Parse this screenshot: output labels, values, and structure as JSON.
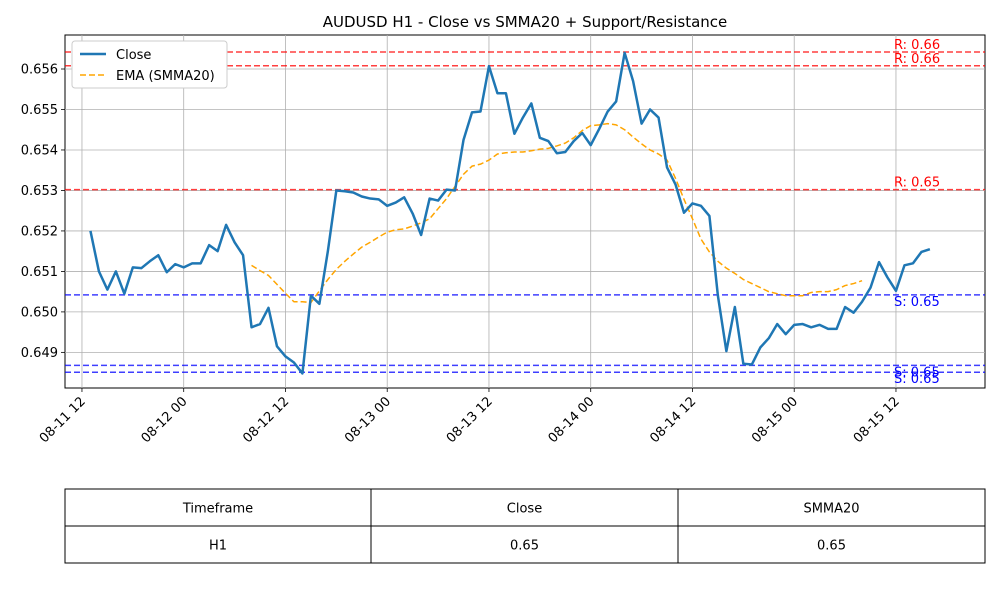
{
  "chart_data": {
    "type": "line",
    "title": "AUDUSD H1 - Close vs SMMA20 + Support/Resistance",
    "xlabel": "",
    "ylabel": "",
    "x_ticks": [
      "08-11 12",
      "08-12 00",
      "08-12 12",
      "08-13 00",
      "08-13 12",
      "08-14 00",
      "08-14 12",
      "08-15 00",
      "08-15 12"
    ],
    "y_ticks": [
      "0.649",
      "0.650",
      "0.651",
      "0.652",
      "0.653",
      "0.654",
      "0.655",
      "0.656"
    ],
    "xlim_hours_from_first_tick": [
      -2.0,
      106.5
    ],
    "ylim": [
      0.64812,
      0.65684
    ],
    "grid": true,
    "legend": {
      "placement": "top-left",
      "entries": [
        "Close",
        "EMA (SMMA20)"
      ]
    },
    "colors": {
      "close": "#1f77b4",
      "ema": "#ffa500",
      "resistance": "#ff0000",
      "support": "#0000ff"
    },
    "series": [
      {
        "name": "Close",
        "start_offset": 1,
        "values": [
          0.652,
          0.651,
          0.65055,
          0.651,
          0.65045,
          0.6511,
          0.65108,
          0.65125,
          0.6514,
          0.65098,
          0.65118,
          0.6511,
          0.6512,
          0.6512,
          0.65165,
          0.6515,
          0.65215,
          0.65172,
          0.6514,
          0.64962,
          0.6497,
          0.6501,
          0.64915,
          0.6489,
          0.64875,
          0.64848,
          0.6504,
          0.6502,
          0.6515,
          0.653,
          0.65298,
          0.65295,
          0.65285,
          0.6528,
          0.65278,
          0.65262,
          0.6527,
          0.65283,
          0.65243,
          0.6519,
          0.6528,
          0.65275,
          0.65302,
          0.653,
          0.65425,
          0.65493,
          0.65495,
          0.65607,
          0.6554,
          0.6554,
          0.6544,
          0.6548,
          0.65515,
          0.6543,
          0.65422,
          0.65392,
          0.65395,
          0.65422,
          0.65442,
          0.65412,
          0.65452,
          0.65495,
          0.6552,
          0.6564,
          0.6557,
          0.65465,
          0.655,
          0.6548,
          0.65357,
          0.65315,
          0.65245,
          0.65268,
          0.65262,
          0.65237,
          0.6504,
          0.64903,
          0.65012,
          0.64872,
          0.6487,
          0.64912,
          0.64935,
          0.6497,
          0.64945,
          0.64968,
          0.6497,
          0.64962,
          0.64968,
          0.64958,
          0.64958,
          0.65012,
          0.64998,
          0.65025,
          0.6506,
          0.65123,
          0.65085,
          0.65052,
          0.65115,
          0.6512,
          0.65148,
          0.65155
        ]
      },
      {
        "name": "EMA (SMMA20)",
        "start_offset": 20,
        "values": [
          0.65115,
          0.65102,
          0.6509,
          0.65068,
          0.65046,
          0.65025,
          0.65025,
          0.65023,
          0.65052,
          0.6508,
          0.65105,
          0.65125,
          0.65143,
          0.6516,
          0.65172,
          0.65185,
          0.65197,
          0.65203,
          0.65205,
          0.65212,
          0.6522,
          0.6523,
          0.65255,
          0.6528,
          0.6531,
          0.6534,
          0.6536,
          0.65365,
          0.65375,
          0.6539,
          0.65393,
          0.65395,
          0.65395,
          0.65398,
          0.65402,
          0.65404,
          0.6541,
          0.65417,
          0.6543,
          0.65448,
          0.6546,
          0.65462,
          0.65465,
          0.65462,
          0.6545,
          0.65432,
          0.65415,
          0.654,
          0.6539,
          0.65375,
          0.6533,
          0.65278,
          0.6523,
          0.6518,
          0.65148,
          0.65125,
          0.65108,
          0.65095,
          0.6508,
          0.6507,
          0.6506,
          0.6505,
          0.65045,
          0.6504,
          0.6504,
          0.6504,
          0.65048,
          0.6505,
          0.6505,
          0.65055,
          0.65065,
          0.6507,
          0.65077
        ]
      }
    ],
    "resistance_levels": [
      {
        "value": 0.65642,
        "label": "R: 0.66"
      },
      {
        "value": 0.65608,
        "label": "R: 0.66"
      },
      {
        "value": 0.65302,
        "label": "R: 0.65"
      }
    ],
    "support_levels": [
      {
        "value": 0.65042,
        "label": "S: 0.65"
      },
      {
        "value": 0.64868,
        "label": "S: 0.65"
      },
      {
        "value": 0.64851,
        "label": "S: 0.65"
      }
    ],
    "table": {
      "headers": [
        "Timeframe",
        "Close",
        "SMMA20"
      ],
      "rows": [
        [
          "H1",
          "0.65",
          "0.65"
        ]
      ]
    }
  }
}
